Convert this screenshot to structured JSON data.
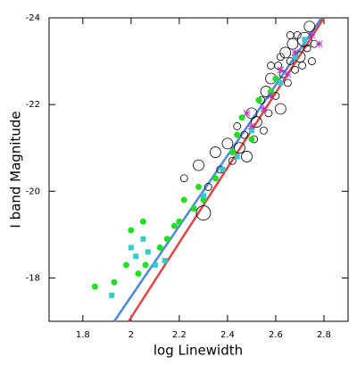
{
  "chart_data": {
    "type": "scatter",
    "xlabel": "log Linewidth",
    "ylabel": "I band Magnitude",
    "xlim": [
      1.66,
      2.9
    ],
    "ylim": [
      -17,
      -24
    ],
    "xticks": [
      1.8,
      2,
      2.2,
      2.4,
      2.6,
      2.8
    ],
    "yticks": [
      -24,
      -22,
      -20,
      -18
    ],
    "series": [
      {
        "marker": "open-circle",
        "color": "#000000",
        "x": [
          2.22,
          2.28,
          2.3,
          2.32,
          2.35,
          2.37,
          2.4,
          2.42,
          2.44,
          2.45,
          2.47,
          2.48,
          2.5,
          2.51,
          2.52,
          2.54,
          2.55,
          2.56,
          2.57,
          2.58,
          2.6,
          2.61,
          2.62,
          2.63,
          2.64,
          2.65,
          2.66,
          2.67,
          2.68,
          2.69,
          2.7,
          2.71,
          2.72,
          2.73,
          2.74,
          2.75,
          2.76,
          2.58,
          2.62,
          2.66
        ],
        "values": [
          -20.3,
          -20.6,
          -19.5,
          -20.1,
          -20.9,
          -20.5,
          -21.1,
          -20.7,
          -21.5,
          -21.0,
          -21.3,
          -20.8,
          -21.8,
          -21.2,
          -21.6,
          -22.1,
          -21.4,
          -22.3,
          -21.8,
          -22.6,
          -22.2,
          -22.9,
          -21.9,
          -22.7,
          -23.2,
          -22.5,
          -23.0,
          -23.4,
          -22.8,
          -23.6,
          -23.1,
          -22.9,
          -23.5,
          -23.3,
          -23.8,
          -23.0,
          -23.4,
          -22.9,
          -23.1,
          -23.6
        ],
        "sizes": [
          1,
          2,
          3,
          1,
          2,
          1,
          2,
          1,
          1,
          2,
          1,
          2,
          2,
          1,
          2,
          1,
          1,
          2,
          1,
          2,
          1,
          1,
          2,
          1,
          2,
          1,
          1,
          2,
          1,
          1,
          2,
          1,
          3,
          1,
          2,
          1,
          1,
          1,
          1,
          1
        ]
      },
      {
        "marker": "filled-circle",
        "color": "#22dd22",
        "x": [
          1.85,
          1.93,
          1.98,
          2.03,
          2.06,
          2.12,
          2.15,
          2.18,
          2.2,
          2.05,
          2.0,
          2.26,
          2.3,
          2.35,
          2.42,
          2.44,
          2.46,
          2.5,
          2.53,
          2.58,
          2.6,
          2.22,
          2.28
        ],
        "values": [
          -17.8,
          -17.9,
          -18.3,
          -18.1,
          -18.3,
          -18.7,
          -18.9,
          -19.2,
          -19.3,
          -19.3,
          -19.1,
          -19.6,
          -19.8,
          -20.3,
          -20.9,
          -21.3,
          -21.7,
          -21.2,
          -22.1,
          -22.3,
          -22.6,
          -19.8,
          -20.1
        ]
      },
      {
        "marker": "square",
        "color": "#33cccc",
        "x": [
          1.92,
          2.0,
          2.02,
          2.05,
          2.07,
          2.1,
          2.14,
          2.3,
          2.38,
          2.44,
          2.5,
          2.62,
          2.68,
          2.72
        ],
        "values": [
          -17.6,
          -18.7,
          -18.5,
          -18.9,
          -18.6,
          -18.3,
          -18.4,
          -19.9,
          -20.5,
          -20.8,
          -21.4,
          -22.5,
          -23.1,
          -23.5
        ]
      },
      {
        "marker": "asterisk",
        "color": "#bb33bb",
        "x": [
          2.48,
          2.5,
          2.55,
          2.58,
          2.62,
          2.65,
          2.68,
          2.75,
          2.78
        ],
        "values": [
          -21.8,
          -21.5,
          -21.9,
          -22.2,
          -22.8,
          -22.7,
          -23.2,
          -23.6,
          -23.4
        ]
      }
    ],
    "lines": [
      {
        "color": "#4a8ad8",
        "x": [
          1.93,
          2.79
        ],
        "values": [
          -17,
          -24
        ]
      },
      {
        "color": "#dd4444",
        "x": [
          1.99,
          2.8
        ],
        "values": [
          -17,
          -24
        ]
      }
    ]
  }
}
